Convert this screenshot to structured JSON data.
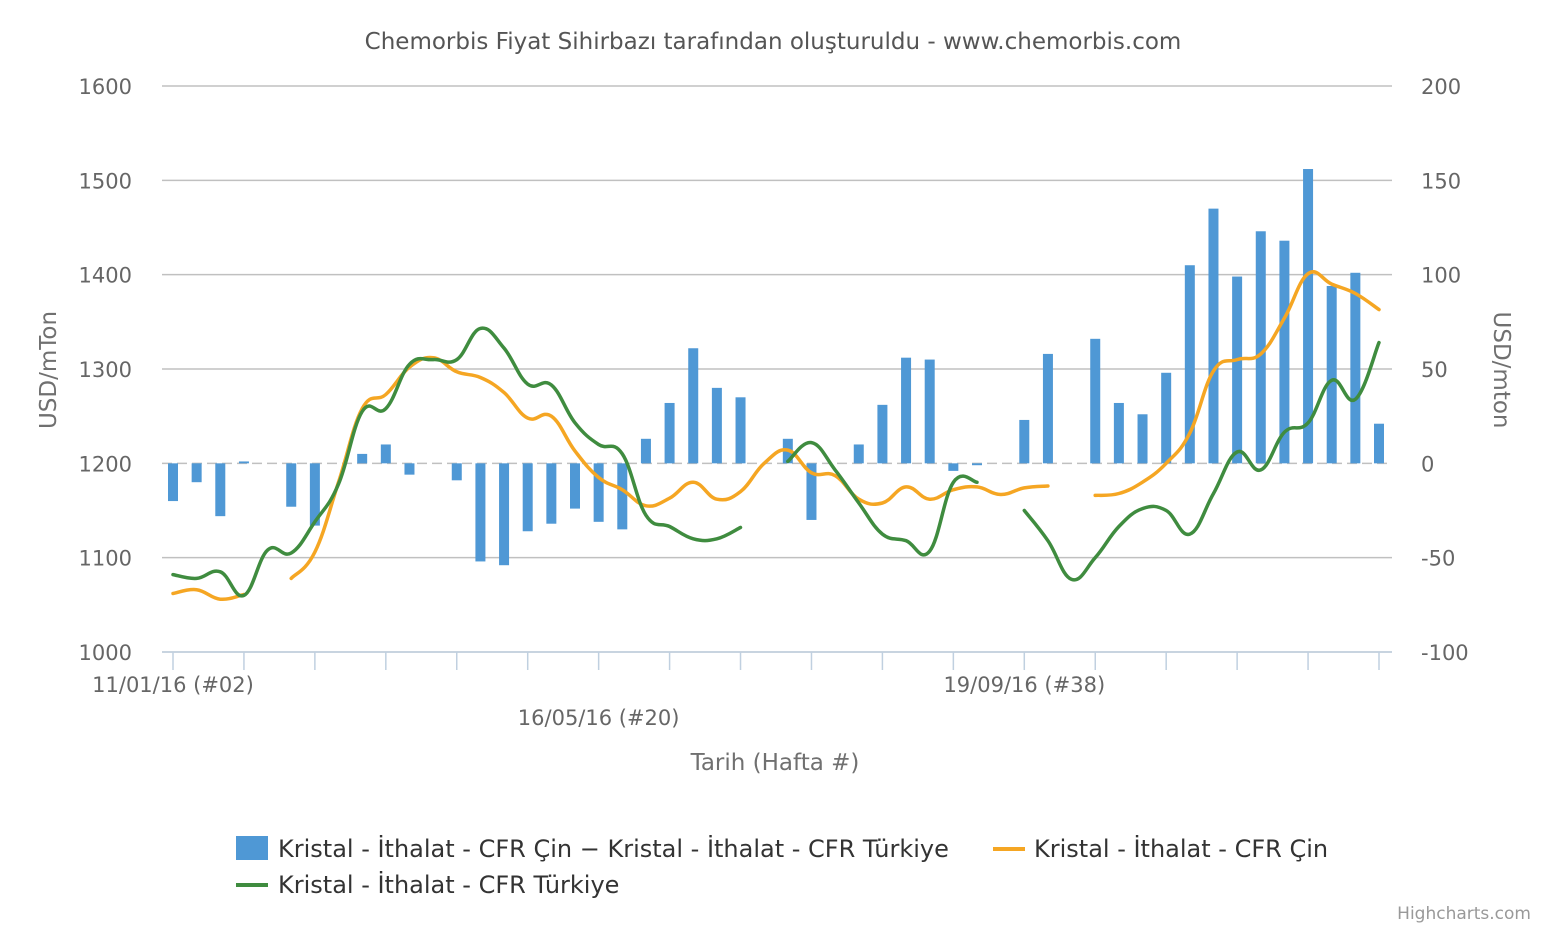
{
  "chart_data": {
    "type": "bar",
    "title": "Chemorbis Fiyat Sihirbazı tarafından oluşturuldu - www.chemorbis.com",
    "xlabel": "Tarih (Hafta #)",
    "ylabel_left": "USD/mTon",
    "ylabel_right": "USD/mton",
    "y_left_ticks": [
      "1000",
      "1100",
      "1200",
      "1300",
      "1400",
      "1500",
      "1600"
    ],
    "y_right_ticks": [
      "-100",
      "-50",
      "0",
      "50",
      "100",
      "150",
      "200"
    ],
    "ylim_left": [
      1000,
      1600
    ],
    "ylim_right": [
      -100,
      200
    ],
    "x_tick_labels": [
      {
        "week": 2,
        "text": "11/01/16 (#02)",
        "row": 1
      },
      {
        "week": 20,
        "text": "16/05/16 (#20)",
        "row": 2
      },
      {
        "week": 38,
        "text": "19/09/16 (#38)",
        "row": 1
      }
    ],
    "x_range_weeks": [
      2,
      52
    ],
    "grid": true,
    "legend_position": "bottom",
    "credit": "Highcharts.com",
    "series": [
      {
        "name": "Kristal - İthalat - CFR Çin − Kristal - İthalat - CFR Türkiye",
        "type": "column",
        "axis": "right",
        "color": "#4f98d5",
        "data": [
          [
            2,
            -20
          ],
          [
            3,
            -10
          ],
          [
            4,
            -28
          ],
          [
            5,
            1
          ],
          [
            7,
            -23
          ],
          [
            8,
            -33
          ],
          [
            10,
            5
          ],
          [
            11,
            10
          ],
          [
            12,
            -6
          ],
          [
            14,
            -9
          ],
          [
            15,
            -52
          ],
          [
            16,
            -54
          ],
          [
            17,
            -36
          ],
          [
            18,
            -32
          ],
          [
            19,
            -24
          ],
          [
            20,
            -31
          ],
          [
            21,
            -35
          ],
          [
            22,
            13
          ],
          [
            23,
            32
          ],
          [
            24,
            61
          ],
          [
            25,
            40
          ],
          [
            26,
            35
          ],
          [
            28,
            13
          ],
          [
            29,
            -30
          ],
          [
            31,
            10
          ],
          [
            32,
            31
          ],
          [
            33,
            56
          ],
          [
            34,
            55
          ],
          [
            35,
            -4
          ],
          [
            36,
            -1
          ],
          [
            38,
            23
          ],
          [
            39,
            58
          ],
          [
            41,
            66
          ],
          [
            42,
            32
          ],
          [
            43,
            26
          ],
          [
            44,
            48
          ],
          [
            45,
            105
          ],
          [
            46,
            135
          ],
          [
            47,
            99
          ],
          [
            48,
            123
          ],
          [
            49,
            118
          ],
          [
            50,
            156
          ],
          [
            51,
            94
          ],
          [
            52,
            101
          ],
          [
            53,
            21
          ]
        ]
      },
      {
        "name": "Kristal - İthalat - CFR Çin",
        "type": "line",
        "axis": "left",
        "color": "#f5a623",
        "segments": [
          [
            [
              2,
              1062
            ],
            [
              3,
              1066
            ],
            [
              4,
              1056
            ],
            [
              5,
              1061
            ]
          ],
          [
            [
              7,
              1078
            ],
            [
              8,
              1106
            ],
            [
              9,
              1180
            ],
            [
              10,
              1258
            ],
            [
              11,
              1273
            ],
            [
              12,
              1302
            ],
            [
              13,
              1312
            ],
            [
              14,
              1297
            ],
            [
              15,
              1291
            ],
            [
              16,
              1275
            ],
            [
              17,
              1248
            ],
            [
              18,
              1250
            ],
            [
              19,
              1213
            ],
            [
              20,
              1185
            ],
            [
              21,
              1172
            ],
            [
              22,
              1155
            ],
            [
              23,
              1163
            ],
            [
              24,
              1180
            ],
            [
              25,
              1162
            ],
            [
              26,
              1170
            ],
            [
              27,
              1200
            ],
            [
              28,
              1214
            ],
            [
              29,
              1190
            ],
            [
              30,
              1187
            ],
            [
              31,
              1162
            ],
            [
              32,
              1158
            ],
            [
              33,
              1175
            ],
            [
              34,
              1162
            ],
            [
              35,
              1172
            ],
            [
              36,
              1175
            ],
            [
              37,
              1167
            ],
            [
              38,
              1174
            ],
            [
              39,
              1176
            ]
          ],
          [
            [
              41,
              1166
            ],
            [
              42,
              1168
            ],
            [
              43,
              1180
            ],
            [
              44,
              1200
            ],
            [
              45,
              1232
            ],
            [
              46,
              1298
            ],
            [
              47,
              1310
            ],
            [
              48,
              1316
            ],
            [
              49,
              1354
            ],
            [
              50,
              1401
            ],
            [
              51,
              1390
            ],
            [
              52,
              1380
            ],
            [
              53,
              1363
            ]
          ]
        ]
      },
      {
        "name": "Kristal - İthalat - CFR Türkiye",
        "type": "line",
        "axis": "left",
        "color": "#3f8c3f",
        "segments": [
          [
            [
              2,
              1082
            ],
            [
              3,
              1078
            ],
            [
              4,
              1085
            ],
            [
              5,
              1060
            ],
            [
              6,
              1108
            ],
            [
              7,
              1105
            ],
            [
              8,
              1138
            ],
            [
              9,
              1178
            ],
            [
              10,
              1255
            ],
            [
              11,
              1258
            ],
            [
              12,
              1305
            ],
            [
              13,
              1310
            ],
            [
              14,
              1310
            ],
            [
              15,
              1343
            ],
            [
              16,
              1322
            ],
            [
              17,
              1284
            ],
            [
              18,
              1283
            ],
            [
              19,
              1243
            ],
            [
              20,
              1220
            ],
            [
              21,
              1210
            ],
            [
              22,
              1145
            ],
            [
              23,
              1133
            ],
            [
              24,
              1120
            ],
            [
              25,
              1120
            ],
            [
              26,
              1132
            ]
          ],
          [
            [
              28,
              1202
            ],
            [
              29,
              1222
            ],
            [
              30,
              1193
            ],
            [
              31,
              1158
            ],
            [
              32,
              1125
            ],
            [
              33,
              1118
            ],
            [
              34,
              1107
            ],
            [
              35,
              1180
            ],
            [
              36,
              1180
            ]
          ],
          [
            [
              38,
              1150
            ],
            [
              39,
              1118
            ],
            [
              40,
              1077
            ],
            [
              41,
              1100
            ],
            [
              42,
              1133
            ],
            [
              43,
              1152
            ],
            [
              44,
              1150
            ],
            [
              45,
              1125
            ],
            [
              46,
              1168
            ],
            [
              47,
              1212
            ],
            [
              48,
              1193
            ],
            [
              49,
              1233
            ],
            [
              50,
              1243
            ],
            [
              51,
              1288
            ],
            [
              52,
              1268
            ],
            [
              53,
              1328
            ]
          ]
        ]
      }
    ]
  }
}
